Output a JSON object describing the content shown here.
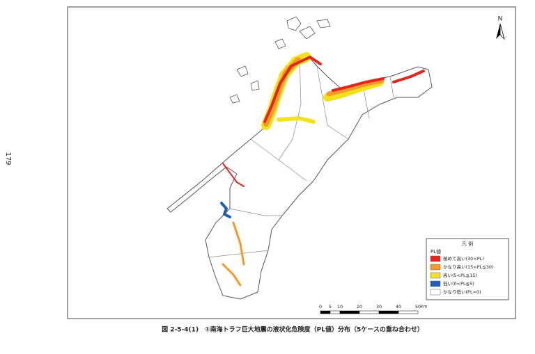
{
  "page_number": "179",
  "north": "N",
  "caption": "図 2-5-4(1)　①南海トラフ巨大地震の液状化危険度（PL値）分布（5ケースの重ね合わせ）",
  "legend": {
    "title": "凡 例",
    "subtitle": "PL値",
    "items": [
      {
        "label": "極めて高い(30<PL)",
        "color": "#e8231c"
      },
      {
        "label": "かなり高い(15<PL≦30)",
        "color": "#f39a2b"
      },
      {
        "label": "高い(5<PL≦15)",
        "color": "#f2e21a"
      },
      {
        "label": "低い(0<PL≦5)",
        "color": "#1f5fb8"
      },
      {
        "label": "かなり低い(PL=0)",
        "color": "#ffffff"
      }
    ]
  },
  "scale": {
    "ticks": [
      0,
      5,
      10,
      20,
      30,
      40,
      50
    ],
    "unit": "km"
  }
}
